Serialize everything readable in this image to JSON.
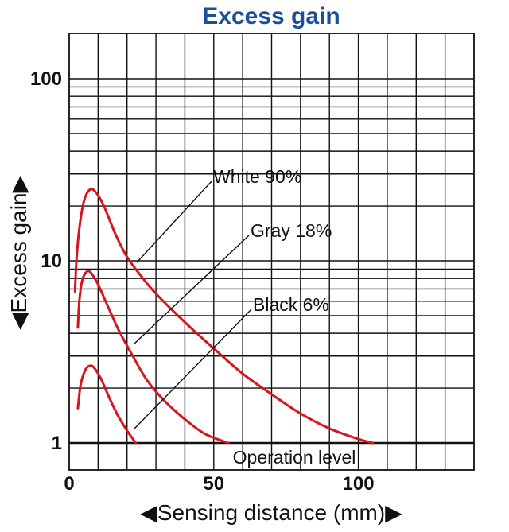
{
  "chart_data": {
    "type": "line",
    "title": "Excess gain",
    "xlabel": "◀Sensing distance (mm)▶",
    "ylabel": "◀Excess gain▶",
    "xlim": [
      0,
      140
    ],
    "ylim": [
      0.85,
      200
    ],
    "yscale": "log",
    "grid": true,
    "x_ticks": [
      {
        "value": 0,
        "label": "0"
      },
      {
        "value": 50,
        "label": "50"
      },
      {
        "value": 100,
        "label": "100"
      }
    ],
    "y_ticks": [
      {
        "value": 1,
        "label": "1"
      },
      {
        "value": 10,
        "label": "10"
      },
      {
        "value": 100,
        "label": "100"
      }
    ],
    "reference_line": {
      "value": 1,
      "label": "Operation level"
    },
    "series": [
      {
        "name": "White 90%",
        "color": "#d8141f",
        "points": [
          [
            2,
            6.8
          ],
          [
            2.5,
            10
          ],
          [
            3.5,
            15
          ],
          [
            5,
            21
          ],
          [
            7,
            24.5
          ],
          [
            9,
            24
          ],
          [
            12,
            20
          ],
          [
            16,
            14
          ],
          [
            20,
            10.5
          ],
          [
            25,
            8.2
          ],
          [
            30,
            6.6
          ],
          [
            40,
            4.6
          ],
          [
            50,
            3.3
          ],
          [
            60,
            2.4
          ],
          [
            70,
            1.85
          ],
          [
            80,
            1.45
          ],
          [
            90,
            1.2
          ],
          [
            100,
            1.05
          ],
          [
            105,
            1.0
          ]
        ]
      },
      {
        "name": "Gray 18%",
        "color": "#d8141f",
        "points": [
          [
            3,
            4.3
          ],
          [
            3.5,
            6
          ],
          [
            4.5,
            7.8
          ],
          [
            6,
            8.7
          ],
          [
            7.5,
            8.6
          ],
          [
            10,
            7.4
          ],
          [
            13,
            5.8
          ],
          [
            17,
            4.2
          ],
          [
            22,
            3.0
          ],
          [
            27,
            2.2
          ],
          [
            33,
            1.7
          ],
          [
            40,
            1.35
          ],
          [
            47,
            1.12
          ],
          [
            55,
            1.0
          ]
        ]
      },
      {
        "name": "Black 6%",
        "color": "#d8141f",
        "points": [
          [
            3,
            1.55
          ],
          [
            4,
            2.1
          ],
          [
            5.5,
            2.5
          ],
          [
            7,
            2.65
          ],
          [
            8.5,
            2.6
          ],
          [
            11,
            2.25
          ],
          [
            14,
            1.75
          ],
          [
            17,
            1.4
          ],
          [
            20,
            1.17
          ],
          [
            23,
            1.0
          ]
        ]
      }
    ]
  }
}
